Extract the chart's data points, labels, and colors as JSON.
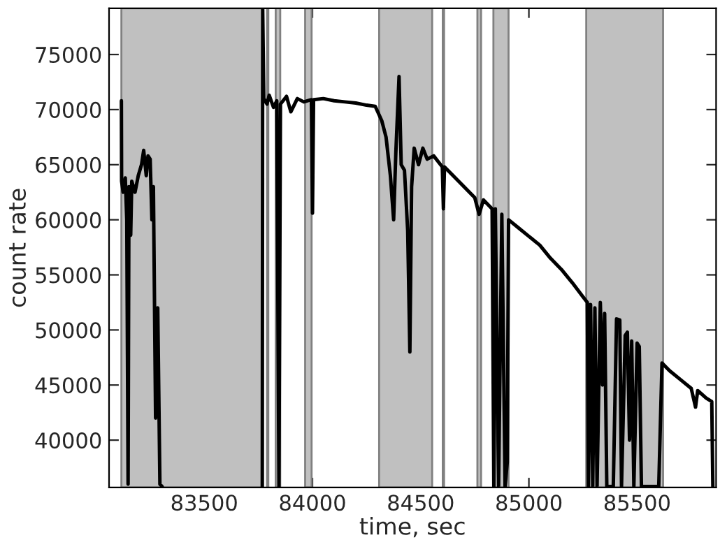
{
  "chart_data": {
    "type": "line",
    "xlabel": "time, sec",
    "ylabel": "count rate",
    "xlim": [
      83060,
      85865
    ],
    "ylim": [
      35700,
      79200
    ],
    "xticks": [
      83500,
      84000,
      84500,
      85000,
      85500
    ],
    "yticks": [
      40000,
      45000,
      50000,
      55000,
      60000,
      65000,
      70000,
      75000
    ],
    "grid": false,
    "legend": false,
    "marker": "none",
    "line_style": "solid",
    "bands": [
      {
        "axis": "x",
        "from": 83117,
        "to": 83770,
        "color": "#c0c0c0"
      },
      {
        "axis": "x",
        "from": 83790,
        "to": 83796,
        "color": "#c0c0c0"
      },
      {
        "axis": "x",
        "from": 83830,
        "to": 83851,
        "color": "#c0c0c0"
      },
      {
        "axis": "x",
        "from": 83966,
        "to": 83996,
        "color": "#c0c0c0"
      },
      {
        "axis": "x",
        "from": 84308,
        "to": 84553,
        "color": "#c0c0c0"
      },
      {
        "axis": "x",
        "from": 84602,
        "to": 84608,
        "color": "#c0c0c0"
      },
      {
        "axis": "x",
        "from": 84762,
        "to": 84779,
        "color": "#c0c0c0"
      },
      {
        "axis": "x",
        "from": 84836,
        "to": 84906,
        "color": "#c0c0c0"
      },
      {
        "axis": "x",
        "from": 85265,
        "to": 85620,
        "color": "#c0c0c0"
      }
    ],
    "series": [
      {
        "color": "#000000",
        "x": [
          83117,
          83118,
          83125,
          83135,
          83142,
          83148,
          83152,
          83160,
          83165,
          83180,
          83195,
          83210,
          83220,
          83232,
          83240,
          83250,
          83258,
          83265,
          83275,
          83285,
          83295,
          83305,
          83500,
          83768,
          83770,
          83775,
          83790,
          83800,
          83820,
          83835,
          83845,
          83852,
          83880,
          83900,
          83930,
          83960,
          83995,
          84000,
          84005,
          84050,
          84100,
          84150,
          84200,
          84250,
          84290,
          84320,
          84340,
          84360,
          84375,
          84385,
          84400,
          84410,
          84425,
          84440,
          84450,
          84458,
          84470,
          84490,
          84510,
          84530,
          84560,
          84600,
          84605,
          84610,
          84650,
          84700,
          84750,
          84770,
          84790,
          84830,
          84838,
          84845,
          84860,
          84875,
          84890,
          84900,
          84906,
          84950,
          85000,
          85050,
          85100,
          85150,
          85200,
          85250,
          85270,
          85275,
          85285,
          85295,
          85305,
          85315,
          85330,
          85340,
          85350,
          85360,
          85390,
          85405,
          85420,
          85428,
          85445,
          85455,
          85465,
          85475,
          85485,
          85500,
          85510,
          85520,
          85545,
          85600,
          85615,
          85650,
          85700,
          85750,
          85770,
          85780,
          85820,
          85845,
          85850
        ],
        "values": [
          70800,
          63500,
          62500,
          63800,
          60000,
          36000,
          63000,
          58600,
          63500,
          62500,
          64000,
          65000,
          66300,
          64000,
          65800,
          65500,
          60000,
          63000,
          42000,
          52000,
          36000,
          35800,
          null,
          35800,
          79100,
          71000,
          70500,
          71300,
          70200,
          70800,
          35800,
          70500,
          71200,
          69800,
          71000,
          70700,
          70900,
          60600,
          70900,
          71000,
          70800,
          70700,
          70600,
          70400,
          70300,
          69000,
          67500,
          64000,
          60000,
          66000,
          73000,
          65000,
          64500,
          59000,
          48000,
          63000,
          66500,
          65000,
          66500,
          65500,
          65800,
          64800,
          61000,
          64800,
          64000,
          63000,
          62000,
          60500,
          61800,
          61000,
          35800,
          61000,
          35800,
          60500,
          35800,
          38000,
          60000,
          59300,
          58500,
          57700,
          56500,
          55500,
          54300,
          53000,
          52500,
          35800,
          52300,
          35800,
          52000,
          35800,
          52500,
          45000,
          51500,
          35800,
          35800,
          51000,
          50900,
          35800,
          49500,
          49800,
          40000,
          49000,
          35800,
          48800,
          48500,
          35800,
          35800,
          35800,
          47000,
          46300,
          45500,
          44700,
          43000,
          44500,
          43800,
          43500,
          35800
        ]
      }
    ]
  }
}
